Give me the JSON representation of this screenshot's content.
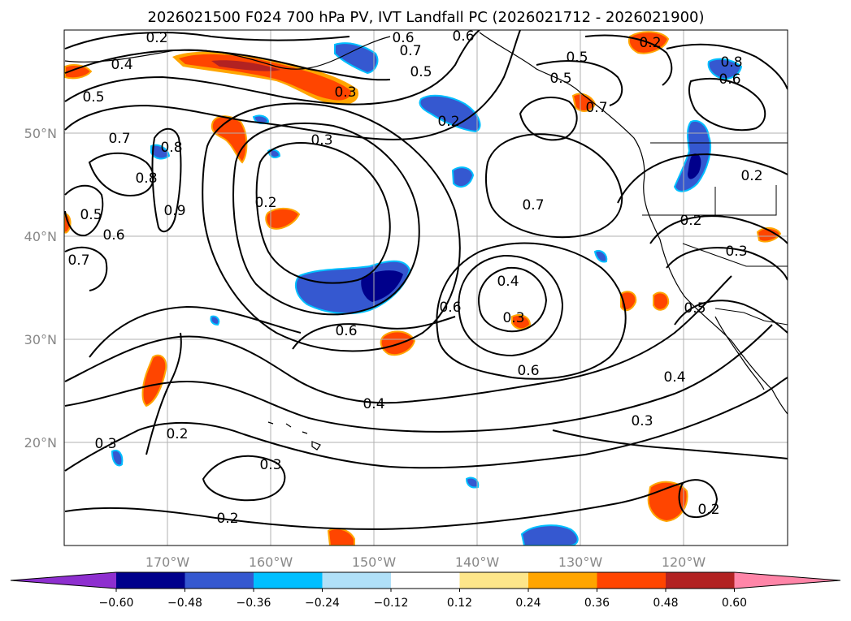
{
  "title": "2026021500 F024 700 hPa PV, IVT Landfall PC (2026021712 - 2026021900)",
  "map": {
    "lon_labels": [
      "170°W",
      "160°W",
      "150°W",
      "140°W",
      "130°W",
      "120°W"
    ],
    "lat_labels": [
      "50°N",
      "40°N",
      "30°N",
      "20°N"
    ],
    "gridlines": true,
    "contour_labels": [
      "0.2",
      "0.4",
      "0.5",
      "0.7",
      "0.8",
      "0.9",
      "0.6",
      "0.5",
      "0.7",
      "0.8",
      "0.7",
      "0.6",
      "0.5",
      "0.3",
      "0.3",
      "0.2",
      "0.2",
      "0.7",
      "0.4",
      "0.3",
      "0.6",
      "0.6",
      "0.6",
      "0.4",
      "0.3",
      "0.2",
      "0.3",
      "0.2",
      "0.3",
      "0.2",
      "0.5",
      "0.7",
      "0.8",
      "0.6",
      "0.5",
      "0.2",
      "0.2",
      "0.3",
      "0.5",
      "0.4",
      "0.2",
      "0.6"
    ]
  },
  "colorbar": {
    "colors": [
      "#8e2fcf",
      "#00008b",
      "#3558d0",
      "#00bfff",
      "#b0e0f8",
      "#ffffff",
      "#fde68a",
      "#ffa500",
      "#ff4500",
      "#b22222",
      "#ff85a8"
    ],
    "tick_labels": [
      "−0.60",
      "−0.48",
      "−0.36",
      "−0.24",
      "−0.12",
      "0.12",
      "0.24",
      "0.36",
      "0.48",
      "0.60"
    ]
  },
  "chart_data": {
    "type": "contour_map",
    "title": "2026021500 F024 700 hPa PV, IVT Landfall PC (2026021712 - 2026021900)",
    "lon_range": [
      -180,
      -110
    ],
    "lat_range": [
      10,
      60
    ],
    "fill_levels": [
      -0.6,
      -0.48,
      -0.36,
      -0.24,
      -0.12,
      0.12,
      0.24,
      0.36,
      0.48,
      0.6
    ],
    "contour_levels": [
      0.2,
      0.3,
      0.4,
      0.5,
      0.6,
      0.7,
      0.8,
      0.9
    ]
  }
}
